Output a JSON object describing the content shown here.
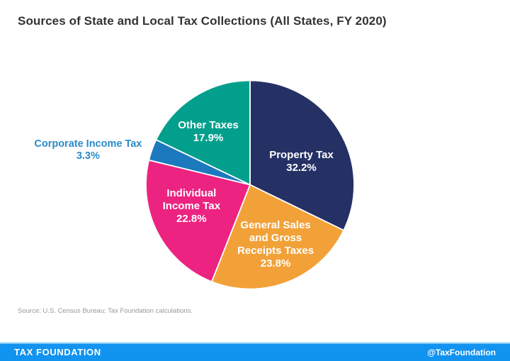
{
  "title": "Sources of State and Local Tax Collections (All States, FY 2020)",
  "source_note": "Source: U.S. Census Bureau; Tax Foundation calculations.",
  "footer": {
    "brand": "TAX FOUNDATION",
    "handle": "@TaxFoundation",
    "bg_color": "#1193F0"
  },
  "chart_data": {
    "type": "pie",
    "title": "Sources of State and Local Tax Collections (All States, FY 2020)",
    "start_angle_deg": 0,
    "direction": "clockwise",
    "legend_position": "labels-on-slices",
    "slices": [
      {
        "label": "Property Tax",
        "value": 32.2,
        "display": "32.2%",
        "color": "#253165",
        "label_lines": [
          "Property Tax",
          "32.2%"
        ],
        "label_pos": "inside",
        "label_angle_deg": 66,
        "label_r": 0.54,
        "label_color": "#FFFFFF"
      },
      {
        "label": "General Sales and Gross Receipts Taxes",
        "value": 23.8,
        "display": "23.8%",
        "color": "#F2A138",
        "label_lines": [
          "General Sales",
          "and Gross",
          "Receipts Taxes",
          "23.8%"
        ],
        "label_pos": "inside",
        "label_angle_deg": 156.9,
        "label_r": 0.625,
        "label_color": "#FFFFFF"
      },
      {
        "label": "Individual Income Tax",
        "value": 22.8,
        "display": "22.8%",
        "color": "#EC2380",
        "label_lines": [
          "Individual",
          "Income Tax",
          "22.8%"
        ],
        "label_pos": "inside",
        "label_angle_deg": 249.6,
        "label_r": 0.6,
        "label_color": "#FFFFFF"
      },
      {
        "label": "Corporate Income Tax",
        "value": 3.3,
        "display": "3.3%",
        "color": "#1D79BE",
        "label_lines": [
          "Corporate Income Tax",
          "3.3%"
        ],
        "label_pos": "outside",
        "label_angle_deg": 282,
        "label_r": 1.59,
        "label_color": "#2A8BC9"
      },
      {
        "label": "Other Taxes",
        "value": 17.9,
        "display": "17.9%",
        "color": "#02A08C",
        "label_lines": [
          "Other Taxes",
          "17.9%"
        ],
        "label_pos": "inside",
        "label_angle_deg": 321.6,
        "label_r": 0.646,
        "label_color": "#FFFFFF"
      }
    ]
  }
}
